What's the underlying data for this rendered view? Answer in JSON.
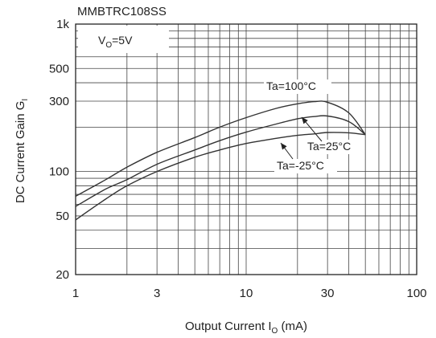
{
  "chart_data": {
    "type": "line",
    "title": "MMBTRC108SS",
    "annotation": {
      "base": "V",
      "sub": "O",
      "rest": "=5V"
    },
    "xlabel": {
      "base": "Output Current I",
      "sub": "O",
      "rest": " (mA)"
    },
    "ylabel": {
      "base": "DC Current Gain G",
      "sub": "I"
    },
    "xscale": "log",
    "yscale": "log",
    "xlim": [
      1,
      100
    ],
    "ylim": [
      20,
      1000
    ],
    "grid": true,
    "xticks": [
      {
        "value": 1,
        "label": "1"
      },
      {
        "value": 3,
        "label": "3"
      },
      {
        "value": 10,
        "label": "10"
      },
      {
        "value": 30,
        "label": "30"
      },
      {
        "value": 100,
        "label": "100"
      }
    ],
    "yticks": [
      {
        "value": 20,
        "label": "20"
      },
      {
        "value": 50,
        "label": "50"
      },
      {
        "value": 100,
        "label": "100"
      },
      {
        "value": 300,
        "label": "300"
      },
      {
        "value": 500,
        "label": "500"
      },
      {
        "value": 1000,
        "label": "1k"
      }
    ],
    "series": [
      {
        "name": "Ta=100°C",
        "x": [
          1,
          1.5,
          2,
          3,
          5,
          7,
          10,
          15,
          20,
          25,
          30,
          40,
          50
        ],
        "y": [
          68,
          88,
          107,
          135,
          170,
          200,
          232,
          268,
          288,
          298,
          295,
          250,
          178
        ]
      },
      {
        "name": "Ta=25°C",
        "x": [
          1,
          1.5,
          2,
          3,
          5,
          7,
          10,
          15,
          20,
          25,
          30,
          40,
          50
        ],
        "y": [
          58,
          76,
          88,
          112,
          140,
          162,
          185,
          210,
          228,
          236,
          238,
          218,
          178
        ]
      },
      {
        "name": "Ta=-25°C",
        "x": [
          1,
          1.5,
          2,
          3,
          5,
          7,
          10,
          15,
          20,
          25,
          30,
          40,
          50
        ],
        "y": [
          47,
          65,
          80,
          100,
          125,
          140,
          155,
          168,
          176,
          180,
          184,
          183,
          178
        ]
      }
    ]
  }
}
